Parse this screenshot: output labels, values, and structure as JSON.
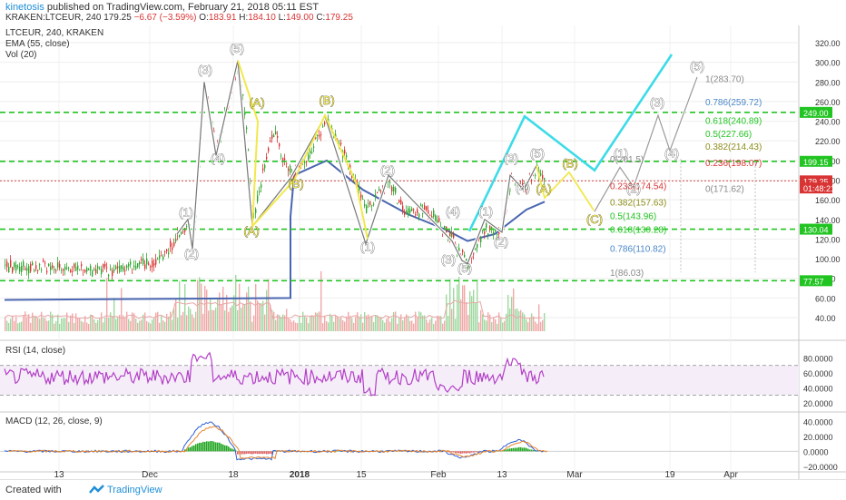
{
  "header": {
    "author": "kinetosis",
    "published_text": "published on TradingView.com, February 21, 2018 05:11 EST",
    "symbol_line": "KRAKEN:LTCEUR, 240",
    "price": "179.25",
    "change": "−6.67 (−3.59%)",
    "o_label": "O:",
    "o_value": "183.91",
    "h_label": "H:",
    "h_value": "184.10",
    "l_label": "L:",
    "l_value": "149.00",
    "c_label": "C:",
    "c_value": "179.25"
  },
  "legend": {
    "symbol": "LTCEUR, 240, KRAKEN",
    "ema": "EMA (55, close)",
    "vol": "Vol (20)"
  },
  "rsi_label": "RSI (14, close)",
  "macd_label": "MACD (12, 26, close, 9)",
  "footer": {
    "created": "Created with",
    "brand": "TradingView"
  },
  "colors": {
    "wave_white": "#ffffff",
    "wave_yellow": "#f2e84c",
    "projection_cyan": "#3ddbe8",
    "support_green": "#22c422",
    "ema_blue": "#4a66b0",
    "rsi_purple": "#b33fc7",
    "price_red": "#d93434",
    "background": "#fff"
  },
  "chart_data": {
    "type": "candlestick",
    "price_axis": {
      "min": 30,
      "max": 330,
      "ticks": [
        "320.00",
        "300.00",
        "280.00",
        "260.00",
        "240.00",
        "220.00",
        "200.00",
        "180.00",
        "160.00",
        "140.00",
        "120.00",
        "100.00",
        "80.00",
        "60.00",
        "40.00"
      ]
    },
    "time_axis": {
      "ticks": [
        "13",
        "Dec",
        "18",
        "2018",
        "15",
        "Feb",
        "13",
        "Mar",
        "19",
        "Apr"
      ]
    },
    "price_badges": [
      {
        "value": "249.00",
        "price": 249,
        "color": "#22c422"
      },
      {
        "value": "199.15",
        "price": 199.15,
        "color": "#22c422"
      },
      {
        "value": "179.25",
        "price": 179.25,
        "color": "#d93434"
      },
      {
        "value": "01:48:21",
        "price": 172,
        "color": "#d93434"
      },
      {
        "value": "130.04",
        "price": 130.04,
        "color": "#22c422"
      },
      {
        "value": "77.57",
        "price": 77.57,
        "color": "#22c422"
      }
    ],
    "support_lines": [
      249,
      199.15,
      130.04,
      77.57
    ],
    "fib_right": [
      {
        "label": "1(283.70)",
        "price": 283.7,
        "color": "#8a8a8a"
      },
      {
        "label": "0.786(259.72)",
        "price": 259.72,
        "color": "#4a86c8"
      },
      {
        "label": "0.618(240.89)",
        "price": 240.89,
        "color": "#22c422"
      },
      {
        "label": "0.5(227.66)",
        "price": 227.66,
        "color": "#22c422"
      },
      {
        "label": "0.382(214.43)",
        "price": 214.43,
        "color": "#8c8c1c"
      },
      {
        "label": "0.236(198.07)",
        "price": 198.07,
        "color": "#d93434"
      },
      {
        "label": "0(171.62)",
        "price": 171.62,
        "color": "#8a8a8a"
      }
    ],
    "fib_mid": [
      {
        "label": "0(201.5)",
        "price": 201.5,
        "color": "#8a8a8a"
      },
      {
        "label": "0.236(174.54)",
        "price": 174.54,
        "color": "#d93434"
      },
      {
        "label": "0.382(157.63)",
        "price": 157.63,
        "color": "#8c8c1c"
      },
      {
        "label": "0.5(143.96)",
        "price": 143.96,
        "color": "#22c422"
      },
      {
        "label": "0.618(130.28)",
        "price": 130.28,
        "color": "#22c422"
      },
      {
        "label": "0.786(110.82)",
        "price": 110.82,
        "color": "#4a86c8"
      },
      {
        "label": "1(86.03)",
        "price": 86.03,
        "color": "#8a8a8a"
      }
    ],
    "wave_labels_white": [
      {
        "label": "(1)",
        "t": 205,
        "price": 143
      },
      {
        "label": "(2)",
        "t": 211,
        "price": 101
      },
      {
        "label": "(3)",
        "t": 226,
        "price": 288
      },
      {
        "label": "(4)",
        "t": 240,
        "price": 198
      },
      {
        "label": "(5)",
        "t": 261,
        "price": 310
      },
      {
        "label": "(1)",
        "t": 405,
        "price": 108
      },
      {
        "label": "(2)",
        "t": 427,
        "price": 186
      },
      {
        "label": "(4)",
        "t": 499,
        "price": 144
      },
      {
        "label": "(3)",
        "t": 494,
        "price": 95
      },
      {
        "label": "(5)",
        "t": 512,
        "price": 86
      },
      {
        "label": "(1)",
        "t": 535,
        "price": 144
      },
      {
        "label": "(2)",
        "t": 552,
        "price": 113
      },
      {
        "label": "(3)",
        "t": 563,
        "price": 198
      },
      {
        "label": "(4)",
        "t": 576,
        "price": 168
      },
      {
        "label": "(5)",
        "t": 592,
        "price": 203
      },
      {
        "label": "(1)",
        "t": 684,
        "price": 203
      },
      {
        "label": "(2)",
        "t": 698,
        "price": 167
      },
      {
        "label": "(3)",
        "t": 724,
        "price": 255
      },
      {
        "label": "(4)",
        "t": 740,
        "price": 203
      },
      {
        "label": "(5)",
        "t": 768,
        "price": 292
      }
    ],
    "wave_labels_yellow": [
      {
        "label": "(A)",
        "t": 283,
        "price": 255
      },
      {
        "label": "(A)",
        "t": 277,
        "price": 124
      },
      {
        "label": "(B)",
        "t": 326,
        "price": 172
      },
      {
        "label": "(B)",
        "t": 360,
        "price": 257
      },
      {
        "label": "(A)",
        "t": 599,
        "price": 167
      },
      {
        "label": "(B)",
        "t": 628,
        "price": 193
      },
      {
        "label": "(C)",
        "t": 655,
        "price": 136
      }
    ],
    "white_wave_path": [
      [
        195,
        125
      ],
      [
        207,
        140
      ],
      [
        212,
        110
      ],
      [
        225,
        280
      ],
      [
        238,
        205
      ],
      [
        262,
        302
      ],
      [
        278,
        133
      ],
      [
        320,
        182
      ],
      [
        358,
        245
      ],
      [
        403,
        115
      ],
      [
        428,
        185
      ],
      [
        498,
        118
      ],
      [
        509,
        98
      ],
      [
        515,
        95
      ],
      [
        534,
        140
      ],
      [
        553,
        127
      ],
      [
        562,
        185
      ],
      [
        577,
        170
      ],
      [
        591,
        195
      ]
    ],
    "yellow_wave_path": [
      [
        262,
        302
      ],
      [
        284,
        240
      ],
      [
        278,
        133
      ],
      [
        324,
        180
      ],
      [
        358,
        246
      ],
      [
        392,
        178
      ],
      [
        405,
        120
      ]
    ],
    "projection_yellow": [
      [
        591,
        195
      ],
      [
        600,
        162
      ],
      [
        627,
        188
      ],
      [
        655,
        148
      ]
    ],
    "projection_white": [
      [
        655,
        148
      ],
      [
        683,
        193
      ],
      [
        698,
        173
      ],
      [
        725,
        246
      ],
      [
        738,
        210
      ],
      [
        768,
        285
      ]
    ],
    "projection_cyan": [
      [
        517,
        128
      ],
      [
        578,
        245
      ],
      [
        655,
        190
      ],
      [
        740,
        308
      ]
    ],
    "rsi": {
      "min": 10,
      "max": 100,
      "ticks": [
        "80.0000",
        "60.0000",
        "40.0000",
        "20.0000"
      ],
      "overbought": 70,
      "oversold": 30
    },
    "macd": {
      "min": -25,
      "max": 50,
      "ticks": [
        "40.0000",
        "20.0000",
        "0.0000",
        "−20.0000"
      ]
    }
  }
}
